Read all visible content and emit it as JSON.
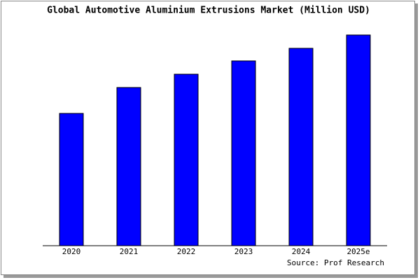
{
  "chart_data": {
    "type": "bar",
    "title": "Global Automotive Aluminium Extrusions Market (Million USD)",
    "source": "Source: Prof Research",
    "categories": [
      "2020",
      "2021",
      "2022",
      "2023",
      "2024",
      "2025e"
    ],
    "values": [
      189,
      226,
      245,
      264,
      282,
      301
    ],
    "color": "#0000ff"
  }
}
